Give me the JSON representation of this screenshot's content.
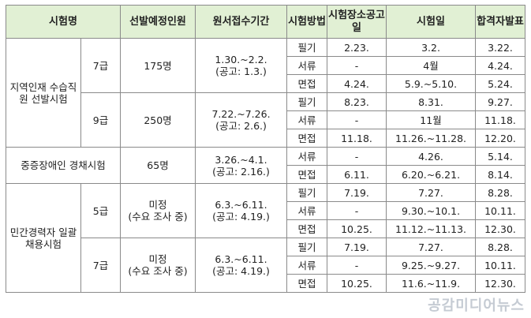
{
  "headers": {
    "exam_name": "시험명",
    "planned": "선발예정인원",
    "application": "원서접수기간",
    "method": "시험방법",
    "venue_notice": "시험장소공고일",
    "exam_date": "시험일",
    "result": "합격자발표"
  },
  "groups": [
    {
      "name": "지역인재 수습직원 선발시험",
      "subgroups": [
        {
          "grade": "7급",
          "planned": "175명",
          "period": "1.30.~2.2.",
          "notice": "(공고: 1.3.)",
          "rows": [
            {
              "method": "필기",
              "venue": "2.23.",
              "date": "3.2.",
              "result": "3.22."
            },
            {
              "method": "서류",
              "venue": "-",
              "date": "4월",
              "result": "4.24."
            },
            {
              "method": "면접",
              "venue": "4.24.",
              "date": "5.9.~5.10.",
              "result": "5.24."
            }
          ]
        },
        {
          "grade": "9급",
          "planned": "250명",
          "period": "7.22.~7.26.",
          "notice": "(공고: 2.6.)",
          "rows": [
            {
              "method": "필기",
              "venue": "8.23.",
              "date": "8.31.",
              "result": "9.27."
            },
            {
              "method": "서류",
              "venue": "-",
              "date": "11월",
              "result": "11.18."
            },
            {
              "method": "면접",
              "venue": "11.18.",
              "date": "11.26.~11.28.",
              "result": "12.20."
            }
          ]
        }
      ]
    },
    {
      "name": "중증장애인 경채시험",
      "subgroups": [
        {
          "grade": "",
          "planned": "65명",
          "period": "3.26.~4.1.",
          "notice": "(공고: 2.16.)",
          "rows": [
            {
              "method": "서류",
              "venue": "-",
              "date": "4.26.",
              "result": "5.14."
            },
            {
              "method": "면접",
              "venue": "6.11.",
              "date": "6.20.~6.21.",
              "result": "8.14."
            }
          ]
        }
      ]
    },
    {
      "name": "민간경력자 일괄채용시험",
      "subgroups": [
        {
          "grade": "5급",
          "planned": "미정",
          "planned_note": "(수요 조사 중)",
          "period": "6.3.~6.11.",
          "notice": "(공고: 4.19.)",
          "rows": [
            {
              "method": "필기",
              "venue": "7.19.",
              "date": "7.27.",
              "result": "8.28."
            },
            {
              "method": "서류",
              "venue": "-",
              "date": "9.30.~10.1.",
              "result": "10.11."
            },
            {
              "method": "면접",
              "venue": "10.25.",
              "date": "11.12.~11.13.",
              "result": "12.30."
            }
          ]
        },
        {
          "grade": "7급",
          "planned": "미정",
          "planned_note": "(수요 조사 중)",
          "period": "6.3.~6.11.",
          "notice": "(공고: 4.19.)",
          "rows": [
            {
              "method": "필기",
              "venue": "7.19.",
              "date": "7.27.",
              "result": "8.28."
            },
            {
              "method": "서류",
              "venue": "-",
              "date": "9.25.~9.27.",
              "result": "10.11."
            },
            {
              "method": "면접",
              "venue": "10.25.",
              "date": "11.6.~11.9.",
              "result": "12.30."
            }
          ]
        }
      ]
    }
  ],
  "watermark": "공감미디어뉴스"
}
